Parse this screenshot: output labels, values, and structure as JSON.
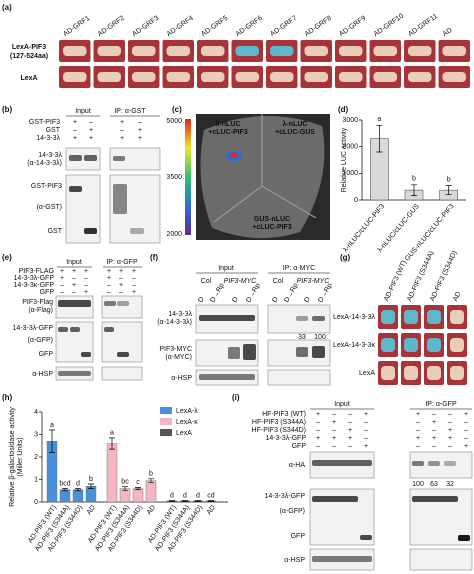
{
  "a": {
    "label": "(a)",
    "columns": [
      "AD-GRF1",
      "AD-GRF2",
      "AD-GRF3",
      "AD-GRF4",
      "AD-GRF5",
      "AD-GRF6",
      "AD-GRF7",
      "AD-GRF8",
      "AD-GRF9",
      "AD-GRF10",
      "AD-GRF11",
      "AD"
    ],
    "rows": [
      "LexA-PIF3",
      "(127-524aa)",
      "LexA"
    ]
  },
  "b": {
    "label": "(b)",
    "headers": [
      "Input",
      "IP: α-GST"
    ],
    "treatments": [
      {
        "name": "GST-PIF3",
        "signs": [
          "+",
          "–",
          "+",
          "–"
        ]
      },
      {
        "name": "GST",
        "signs": [
          "–",
          "+",
          "–",
          "+"
        ]
      },
      {
        "name": "14-3-3λ",
        "signs": [
          "+",
          "+",
          "+",
          "+"
        ]
      }
    ],
    "blot_labels": [
      "14-3-3λ",
      "(α-14-3-3λ)",
      "GST-PIF3",
      "(α-GST)",
      "GST"
    ]
  },
  "c": {
    "label": "(c)",
    "constructs": [
      "λ-nLUC",
      "+cLUC-PIF3",
      "λ-nLUC",
      "+cLUC-GUS",
      "GUS-nLUC",
      "+cLUC-PIF3"
    ],
    "colorbar_ticks": [
      5000,
      3500,
      2000
    ]
  },
  "e": {
    "label": "(e)",
    "headers": [
      "Input",
      "IP: α-GFP"
    ],
    "treatments": [
      {
        "name": "PIF3-FLAG",
        "signs": [
          "+",
          "+",
          "+",
          "+",
          "+",
          "+"
        ]
      },
      {
        "name": "14-3-3λ-GFP",
        "signs": [
          "+",
          "–",
          "–",
          "+",
          "–",
          "–"
        ]
      },
      {
        "name": "14-3-3κ-GFP",
        "signs": [
          "–",
          "+",
          "–",
          "–",
          "+",
          "–"
        ]
      },
      {
        "name": "GFP",
        "signs": [
          "–",
          "–",
          "+",
          "–",
          "–",
          "+"
        ]
      }
    ],
    "blot_labels": [
      "PIF3-Flag",
      "(α-Flag)",
      "14-3-3λ-GFP",
      "(α-GFP)",
      "GFP",
      "α-HSP"
    ]
  },
  "f": {
    "label": "(f)",
    "headers": [
      "Input",
      "IP: α-MYC"
    ],
    "genotypes": [
      "Col",
      "PIF3-MYC",
      "Col",
      "PIF3-MYC"
    ],
    "lanes": [
      "D",
      "D→Rp",
      "D",
      "D→Rp",
      "D",
      "D→Rp",
      "D",
      "D→Rp"
    ],
    "blot_labels": [
      "14-3-3λ",
      "(α-14-3-3λ)",
      "PIF3-MYC",
      "(α-MYC)",
      "α-HSP"
    ],
    "quantification": [
      33,
      100
    ]
  },
  "g": {
    "label": "(g)",
    "columns": [
      "AD-PIF3 (WT)",
      "AD-PIF3 (S344A)",
      "AD-PIF3 (S344D)",
      "AD"
    ],
    "rows": [
      "LexA-14-3-3λ",
      "LexA-14-3-3κ",
      "LexA"
    ]
  },
  "i": {
    "label": "(i)",
    "headers": [
      "Input",
      "IP: α-GFP"
    ],
    "treatments": [
      {
        "name": "HF-PIF3 (WT)",
        "signs": [
          "+",
          "–",
          "–",
          "+",
          "+",
          "–",
          "–",
          "+"
        ]
      },
      {
        "name": "HF-PIF3 (S344A)",
        "signs": [
          "–",
          "+",
          "–",
          "–",
          "–",
          "+",
          "–",
          "–"
        ]
      },
      {
        "name": "HF-PIF3 (S344D)",
        "signs": [
          "–",
          "–",
          "+",
          "–",
          "–",
          "–",
          "+",
          "–"
        ]
      },
      {
        "name": "14-3-3λ-GFP",
        "signs": [
          "+",
          "+",
          "+",
          "–",
          "+",
          "+",
          "+",
          "–"
        ]
      },
      {
        "name": "GFP",
        "signs": [
          "–",
          "–",
          "–",
          "+",
          "–",
          "–",
          "–",
          "+"
        ]
      }
    ],
    "blot_labels": [
      "α-HA",
      "14-3-3λ-GFP",
      "(α-GFP)",
      "GFP",
      "α-HSP"
    ],
    "quantification": [
      100,
      63,
      32
    ]
  },
  "chart_data": [
    {
      "type": "bar",
      "label": "(d)",
      "ylabel": "Relative LUC activity",
      "categories": [
        "λ-nLUC/cLUC-PIF3",
        "λ-nLUC/cLUC-GUS",
        "GUS-nLUC/cLUC-PIF3"
      ],
      "values": [
        2300,
        370,
        370
      ],
      "errors": [
        500,
        200,
        170
      ],
      "letters": [
        "a",
        "b",
        "b"
      ],
      "color": "#d9d9d9",
      "ylim": [
        0,
        3000
      ],
      "yticks": [
        0,
        1000,
        2000,
        3000
      ]
    },
    {
      "type": "grouped-bar",
      "label": "(h)",
      "ylabel": [
        "Relative β-galactosidase activity",
        "(Miller Units)"
      ],
      "categories": [
        "AD-PIF3 (WT)",
        "AD-PIF3 (S344A)",
        "AD-PIF3 (S344D)",
        "AD"
      ],
      "series": [
        {
          "name": "LexA-λ",
          "color": "#4a90d9",
          "values": [
            2.7,
            0.55,
            0.55,
            0.7
          ],
          "errors": [
            0.5,
            0.05,
            0.05,
            0.1
          ],
          "letters": [
            "a",
            "bcd",
            "d",
            "b"
          ]
        },
        {
          "name": "LexA-κ",
          "color": "#f4b6c2",
          "values": [
            2.6,
            0.6,
            0.6,
            0.95
          ],
          "errors": [
            0.25,
            0.08,
            0.05,
            0.08
          ],
          "letters": [
            "a",
            "bc",
            "c",
            "b"
          ]
        },
        {
          "name": "LexA",
          "color": "#555555",
          "values": [
            0.05,
            0.05,
            0.05,
            0.05
          ],
          "errors": [
            0.02,
            0.02,
            0.02,
            0.02
          ],
          "letters": [
            "d",
            "d",
            "d",
            "cd"
          ]
        }
      ],
      "ylim": [
        0,
        4
      ],
      "yticks": [
        0,
        1,
        2,
        3,
        4
      ]
    }
  ]
}
